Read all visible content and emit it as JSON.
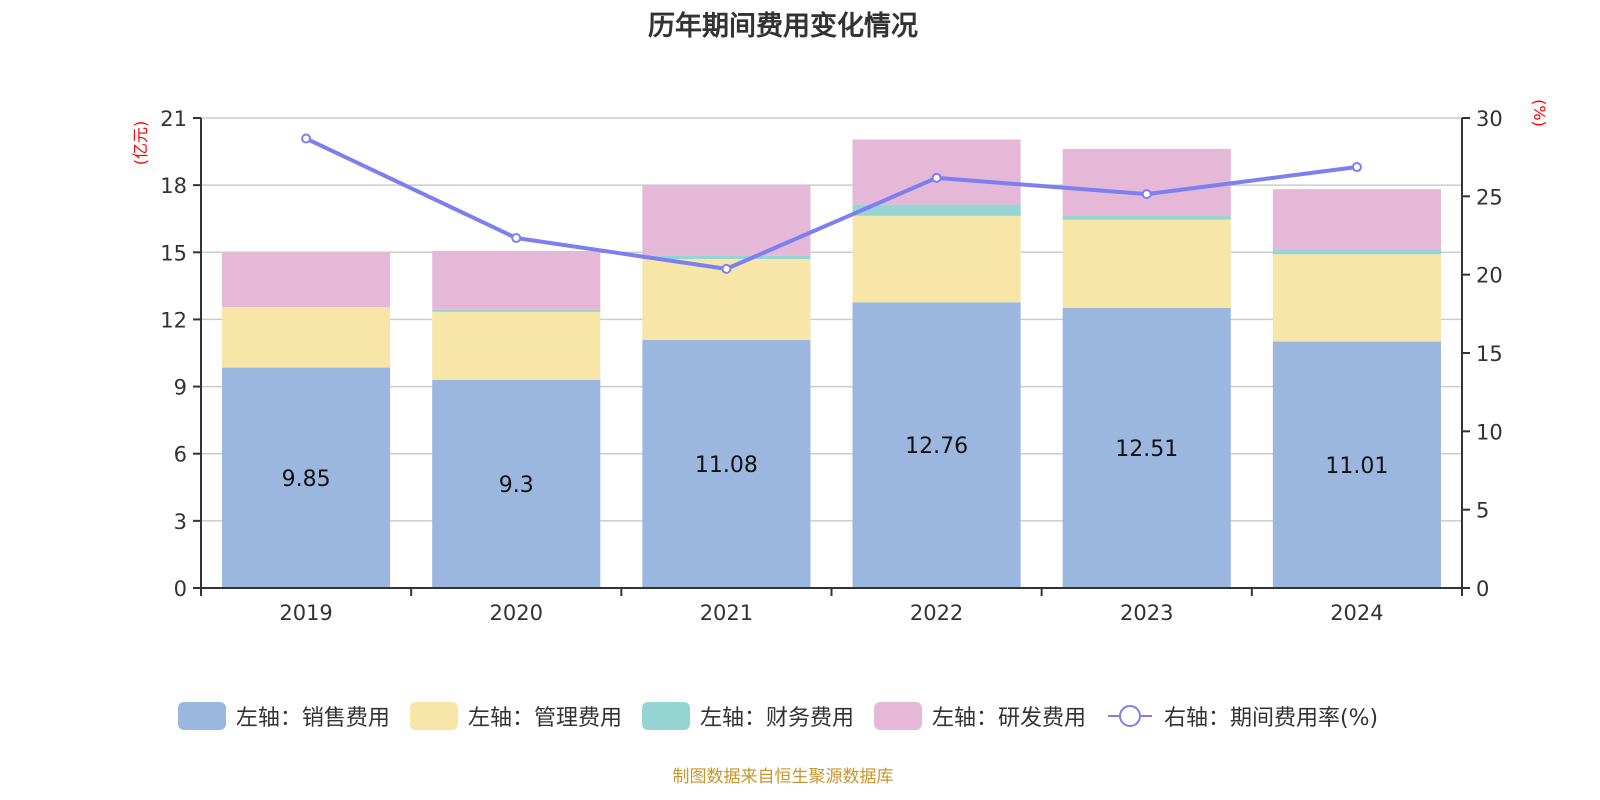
{
  "title": "历年期间费用变化情况",
  "footer": {
    "text": "制图数据来自恒生聚源数据库",
    "color": "#c8962a"
  },
  "colors": {
    "sales": "#9bb7e0",
    "management": "#f7e6a8",
    "finance": "#96d3d3",
    "rnd": "#e6b8d8",
    "rate_line": "#7b7ff0",
    "axis_unit": "#ff0000"
  },
  "legend": [
    {
      "key": "sales",
      "label": "左轴：销售费用",
      "kind": "bar"
    },
    {
      "key": "management",
      "label": "左轴：管理费用",
      "kind": "bar"
    },
    {
      "key": "finance",
      "label": "左轴：财务费用",
      "kind": "bar"
    },
    {
      "key": "rnd",
      "label": "左轴：研发费用",
      "kind": "bar"
    },
    {
      "key": "rate_line",
      "label": "右轴：期间费用率(%)",
      "kind": "line"
    }
  ],
  "chart_data": {
    "type": "bar",
    "stacked": true,
    "title": "历年期间费用变化情况",
    "categories": [
      "2019",
      "2020",
      "2021",
      "2022",
      "2023",
      "2024"
    ],
    "series": [
      {
        "name": "左轴：销售费用",
        "key": "sales",
        "axis": "left",
        "values": [
          9.85,
          9.3,
          11.08,
          12.76,
          12.51,
          11.01
        ],
        "labels_shown": true
      },
      {
        "name": "左轴：管理费用",
        "key": "management",
        "axis": "left",
        "values": [
          2.7,
          3.04,
          3.62,
          3.87,
          3.95,
          3.9
        ]
      },
      {
        "name": "左轴：财务费用",
        "key": "finance",
        "axis": "left",
        "values": [
          0.0,
          0.09,
          0.15,
          0.5,
          0.19,
          0.19
        ]
      },
      {
        "name": "左轴：研发费用",
        "key": "rnd",
        "axis": "left",
        "values": [
          2.45,
          2.63,
          3.14,
          2.91,
          2.97,
          2.72
        ]
      },
      {
        "name": "右轴：期间费用率(%)",
        "key": "rate_line",
        "axis": "right",
        "type": "line",
        "values": [
          28.69,
          22.34,
          20.37,
          26.18,
          25.14,
          26.87
        ]
      }
    ],
    "left_axis": {
      "label": "(亿元)",
      "min": 0,
      "max": 21,
      "ticks": [
        0,
        3,
        6,
        9,
        12,
        15,
        18,
        21
      ]
    },
    "right_axis": {
      "label": "(%)",
      "min": 0,
      "max": 30,
      "ticks": [
        0,
        5,
        10,
        15,
        20,
        25,
        30
      ]
    },
    "grid": true,
    "legend_position": "bottom"
  }
}
